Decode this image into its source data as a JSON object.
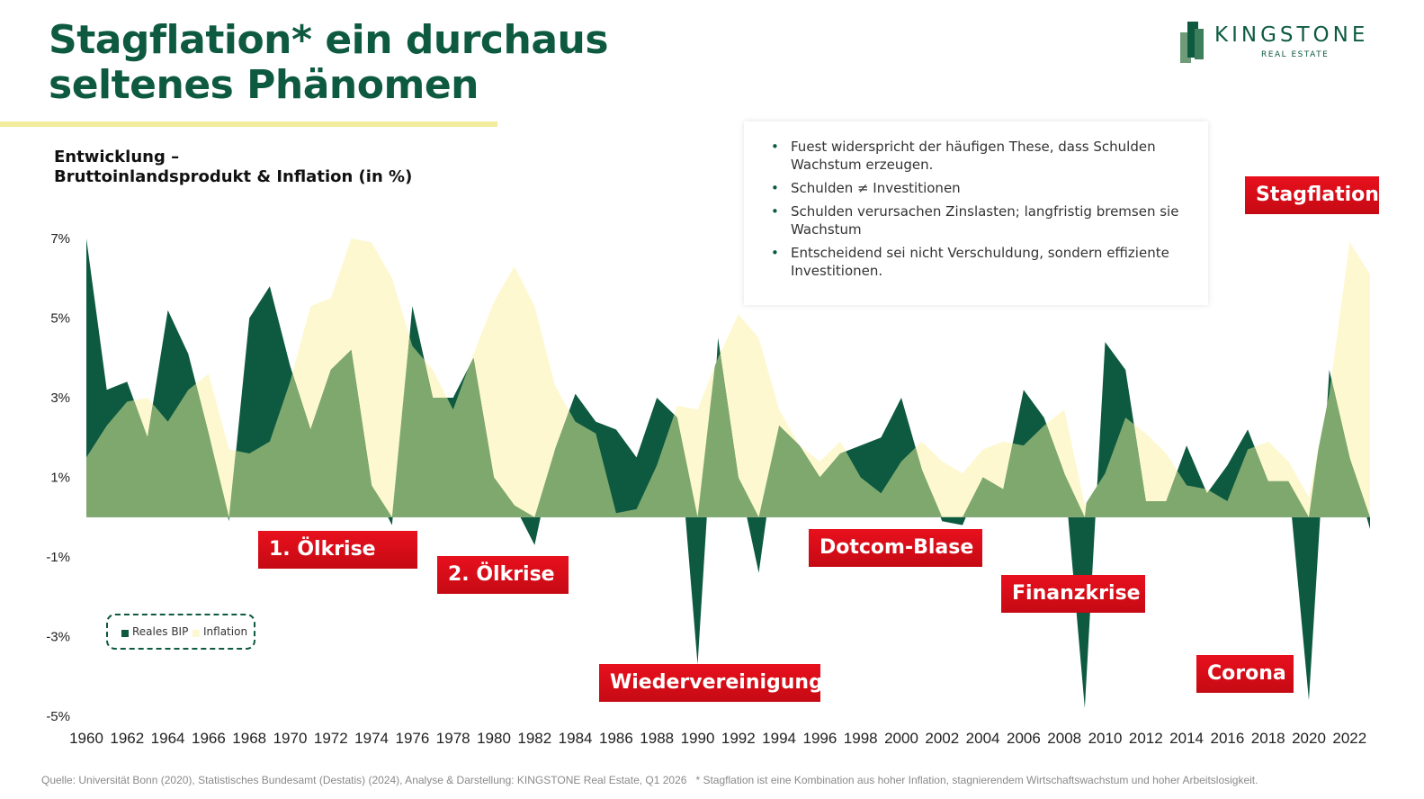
{
  "header": {
    "title_line1": "Stagflation* ein durchaus",
    "title_line2": "seltenes Phänomen",
    "subtitle_line1": "Entwicklung –",
    "subtitle_line2": "Bruttoinlandsprodukt & Inflation (in %)"
  },
  "logo": {
    "name": "KINGSTONE",
    "sub": "REAL ESTATE"
  },
  "info_points": [
    "Fuest widerspricht der häufigen These, dass Schulden Wachstum erzeugen.",
    "Schulden ≠ Investitionen",
    "Schulden verursachen Zinslasten; langfristig bremsen sie Wachstum",
    "Entscheidend sei nicht Verschuldung, sondern effiziente Investitionen."
  ],
  "event_labels": {
    "oil1": "1. Ölkrise",
    "oil2": "2. Ölkrise",
    "reunification": "Wiedervereinigung",
    "dotcom": "Dotcom-Blase",
    "financial": "Finanzkrise",
    "corona": "Corona",
    "stagflation": "Stagflation"
  },
  "footer": {
    "source": "Quelle: Universität Bonn (2020), Statistisches Bundesamt (Destatis) (2024), Analyse & Darstellung: KINGSTONE Real Estate, Q1 2026",
    "note": "* Stagflation ist eine Kombination aus hoher Inflation, stagnierendem Wirtschaftswachstum und hoher  Arbeitslosigkeit."
  },
  "colors": {
    "gdp": "#0e5a40",
    "inflation": "#fdf8d0",
    "overlap": "#7fa86f",
    "label_red": "#d90c17",
    "title_green": "#0e5a40"
  },
  "chart_data": {
    "type": "area",
    "x": [
      1960,
      1961,
      1962,
      1963,
      1964,
      1965,
      1966,
      1967,
      1968,
      1969,
      1970,
      1971,
      1972,
      1973,
      1974,
      1975,
      1976,
      1977,
      1978,
      1979,
      1980,
      1981,
      1982,
      1983,
      1984,
      1985,
      1986,
      1987,
      1988,
      1989,
      1990,
      1991,
      1992,
      1993,
      1994,
      1995,
      1996,
      1997,
      1998,
      1999,
      2000,
      2001,
      2002,
      2003,
      2004,
      2005,
      2006,
      2007,
      2008,
      2009,
      2010,
      2011,
      2012,
      2013,
      2014,
      2015,
      2016,
      2017,
      2018,
      2019,
      2020,
      2021,
      2022,
      2023
    ],
    "x_tick_labels": [
      "1960",
      "1962",
      "1964",
      "1966",
      "1968",
      "1970",
      "1972",
      "1974",
      "1976",
      "1978",
      "1980",
      "1982",
      "1984",
      "1986",
      "1988",
      "1990",
      "1992",
      "1994",
      "1996",
      "1998",
      "2000",
      "2002",
      "2004",
      "2006",
      "2008",
      "2010",
      "2012",
      "2014",
      "2016",
      "2018",
      "2020",
      "2022"
    ],
    "y_tick_labels": [
      "7%",
      "5%",
      "3%",
      "1%",
      "-1%",
      "-3%",
      "-5%"
    ],
    "ylim": [
      -5,
      7
    ],
    "series": [
      {
        "name": "Reales BIP",
        "values": [
          7.0,
          3.2,
          3.4,
          2.0,
          5.2,
          4.1,
          2.1,
          -0.1,
          5.0,
          5.8,
          3.8,
          2.2,
          3.7,
          4.2,
          0.8,
          -0.2,
          5.3,
          3.0,
          3.0,
          4.0,
          1.0,
          0.3,
          -0.7,
          1.7,
          3.1,
          2.4,
          2.2,
          1.5,
          3.0,
          2.5,
          -3.7,
          4.5,
          1.0,
          -1.4,
          2.3,
          1.8,
          1.0,
          1.6,
          1.8,
          2.0,
          3.0,
          1.2,
          -0.1,
          -0.2,
          1.0,
          0.7,
          3.2,
          2.5,
          1.1,
          -4.8,
          4.4,
          3.7,
          0.4,
          0.4,
          1.8,
          0.6,
          1.3,
          2.2,
          0.9,
          0.9,
          -4.6,
          3.7,
          1.5,
          -0.3
        ]
      },
      {
        "name": "Inflation",
        "values": [
          1.5,
          2.3,
          2.9,
          3.0,
          2.4,
          3.2,
          3.6,
          1.7,
          1.6,
          1.9,
          3.4,
          5.3,
          5.5,
          7.0,
          6.9,
          6.0,
          4.3,
          3.7,
          2.7,
          4.1,
          5.4,
          6.3,
          5.3,
          3.3,
          2.4,
          2.1,
          0.1,
          0.2,
          1.3,
          2.8,
          2.7,
          4.0,
          5.1,
          4.5,
          2.7,
          1.8,
          1.4,
          1.9,
          1.0,
          0.6,
          1.4,
          1.9,
          1.4,
          1.1,
          1.7,
          1.9,
          1.8,
          2.3,
          2.7,
          0.3,
          1.1,
          2.5,
          2.1,
          1.6,
          0.8,
          0.7,
          0.4,
          1.7,
          1.9,
          1.4,
          0.5,
          3.1,
          6.9,
          6.1
        ]
      }
    ],
    "legend": "bottom-left",
    "grid": false
  }
}
